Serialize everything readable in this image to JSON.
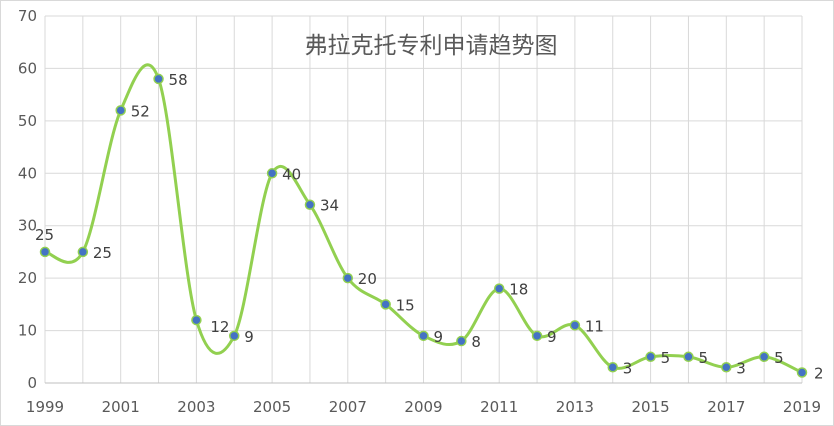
{
  "chart_data": {
    "type": "line",
    "title": "弗拉克托专利申请趋势图",
    "xlabel": "",
    "ylabel": "",
    "x": [
      1999,
      2000,
      2001,
      2002,
      2003,
      2004,
      2005,
      2006,
      2007,
      2008,
      2009,
      2010,
      2011,
      2012,
      2013,
      2014,
      2015,
      2016,
      2017,
      2018,
      2019
    ],
    "series": [
      {
        "values": [
          25,
          25,
          52,
          58,
          12,
          9,
          40,
          34,
          20,
          15,
          9,
          8,
          18,
          9,
          11,
          3,
          5,
          5,
          3,
          5,
          2
        ]
      }
    ],
    "x_tick_labels": [
      "1999",
      "2001",
      "2003",
      "2005",
      "2007",
      "2009",
      "2011",
      "2013",
      "2015",
      "2017",
      "2019"
    ],
    "y_tick_labels": [
      "0",
      "10",
      "20",
      "30",
      "40",
      "50",
      "60",
      "70"
    ],
    "ylim": [
      0,
      70
    ],
    "smooth": true,
    "grid": "both",
    "colors": {
      "line": "#92d050",
      "marker_fill": "#4472c4",
      "grid": "#d9d9d9",
      "text": "#595959"
    }
  }
}
